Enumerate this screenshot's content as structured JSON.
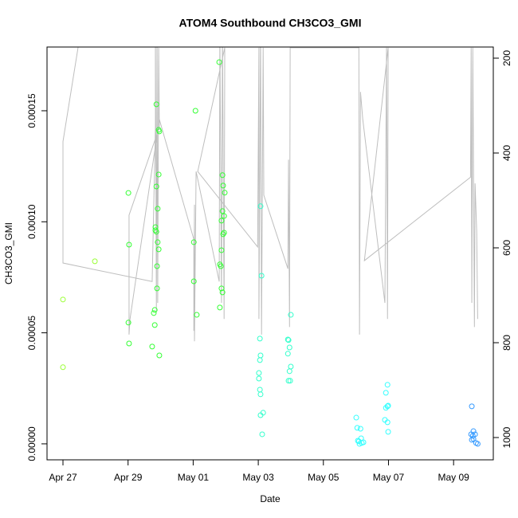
{
  "chart_data": {
    "type": "scatter",
    "title": "ATOM4 Southbound CH3CO3_GMI",
    "xlabel": "Date",
    "ylabel": "CH3CO3_GMI",
    "xlim": [
      -0.49,
      13.22
    ],
    "ylim": [
      -7.2e-06,
      0.0001787
    ],
    "y2lim": [
      1047,
      176.5
    ],
    "xticks": [
      {
        "value": 0,
        "label": "Apr 27"
      },
      {
        "value": 2,
        "label": "Apr 29"
      },
      {
        "value": 4,
        "label": "May 01"
      },
      {
        "value": 6,
        "label": "May 03"
      },
      {
        "value": 8,
        "label": "May 05"
      },
      {
        "value": 10,
        "label": "May 07"
      },
      {
        "value": 12,
        "label": "May 09"
      }
    ],
    "yticks": [
      {
        "value": 0,
        "label": "0.00000"
      },
      {
        "value": 5e-05,
        "label": "0.00005"
      },
      {
        "value": 0.0001,
        "label": "0.00010"
      },
      {
        "value": 0.00015,
        "label": "0.00015"
      }
    ],
    "y2ticks": [
      200,
      400,
      600,
      800,
      1000
    ],
    "series": [
      {
        "type": "line",
        "axis": "y2",
        "color": "#bebebe",
        "x": [
          0.54,
          0,
          0,
          2.74,
          2.84,
          2.84,
          2.87,
          2.89,
          2.91,
          2.94,
          2.96,
          2.03,
          2.03,
          2.06,
          2.96,
          4.02,
          4.02,
          4.04,
          4.04,
          4.09,
          4.8,
          4.82,
          4.87,
          4.9,
          4.95,
          4.97,
          4.14,
          5.98,
          6.02,
          6.02,
          6.07,
          6.1,
          6.15,
          6.17,
          6.91,
          6.93,
          6.96,
          6.98,
          9.09,
          9.11,
          9.14,
          9.21,
          9.89,
          9.94,
          9.97,
          9.99,
          9.26,
          12.52,
          12.54,
          12.56,
          12.59,
          12.64,
          12.66,
          12.71,
          12.74
        ],
        "values": [
          145,
          376,
          632,
          671,
          346,
          145,
          733,
          145,
          716,
          178,
          346,
          531,
          783,
          750,
          329,
          582,
          775,
          509,
          797,
          439,
          671,
          145,
          716,
          145,
          750,
          178,
          439,
          598,
          178,
          750,
          145,
          783,
          178,
          489,
          644,
          414,
          767,
          178,
          178,
          783,
          271,
          329,
          716,
          178,
          750,
          178,
          627,
          451,
          178,
          716,
          178,
          767,
          464,
          565,
          750
        ]
      },
      {
        "color": "#99ff33",
        "x": [
          0,
          0,
          0.98
        ],
        "values": [
          6.5e-05,
          3.45e-05,
          8.22e-05
        ]
      },
      {
        "color": "#33ff33",
        "x": [
          2.01,
          2.03,
          2.01,
          2.03,
          2.74,
          2.87,
          2.94,
          2.96,
          2.94,
          2.87,
          2.91,
          2.84,
          2.84,
          2.87,
          2.91,
          2.94,
          2.89,
          2.89,
          2.82,
          2.79,
          2.82,
          2.96,
          4.07,
          4.02,
          4.02,
          4.11,
          4.8,
          4.9,
          4.92,
          4.97,
          4.9,
          4.95,
          4.87,
          4.92,
          4.95,
          4.87,
          4.82,
          4.85,
          4.87,
          4.9,
          4.82
        ],
        "values": [
          0.000113,
          8.97e-05,
          5.46e-05,
          4.52e-05,
          4.38e-05,
          0.0001529,
          0.0001414,
          0.0001407,
          0.0001213,
          0.0001159,
          0.0001059,
          9.76e-05,
          9.62e-05,
          9.55e-05,
          9.08e-05,
          8.76e-05,
          8e-05,
          7e-05,
          6.03e-05,
          5.89e-05,
          5.35e-05,
          3.98e-05,
          0.00015,
          9.08e-05,
          7.32e-05,
          5.81e-05,
          0.0001719,
          0.000121,
          0.0001163,
          0.0001131,
          0.0001048,
          0.0001026,
          0.0001005,
          9.44e-05,
          9.51e-05,
          8.72e-05,
          8.08e-05,
          8e-05,
          7e-05,
          6.82e-05,
          6.14e-05
        ]
      },
      {
        "color": "#33ffcc",
        "x": [
          6.07,
          6.1,
          6.05,
          6.07,
          6.05,
          6.02,
          6.02,
          6.05,
          6.07,
          6.15,
          6.07,
          6.12,
          7.0,
          6.91,
          6.93,
          6.96,
          6.91,
          7.0,
          6.96,
          6.93,
          6.98
        ],
        "values": [
          0.000107,
          7.57e-05,
          4.74e-05,
          3.98e-05,
          3.77e-05,
          3.19e-05,
          2.94e-05,
          2.44e-05,
          2.23e-05,
          1.4e-05,
          1.29e-05,
          4.3e-06,
          5.81e-05,
          4.7e-05,
          4.67e-05,
          4.34e-05,
          4.06e-05,
          3.48e-05,
          3.27e-05,
          2.84e-05,
          2.84e-05
        ]
      },
      {
        "color": "#33ffff",
        "x": [
          9.01,
          9.04,
          9.14,
          9.16,
          9.09,
          9.18,
          9.23,
          9.06,
          9.11,
          9.97,
          9.92,
          9.99,
          9.92,
          9.97,
          9.89,
          9.97,
          9.99
        ],
        "values": [
          1.18e-05,
          7.2e-06,
          6.8e-06,
          2.5e-06,
          1.1e-06,
          4e-07,
          7e-07,
          1.4e-06,
          0,
          2.66e-05,
          2.3e-05,
          1.72e-05,
          1.62e-05,
          1.69e-05,
          1.08e-05,
          9.7e-06,
          5.4e-06
        ]
      },
      {
        "color": "#3399ff",
        "x": [
          12.56,
          12.54,
          12.61,
          12.66,
          12.56,
          12.61,
          12.69,
          12.74,
          12.59
        ],
        "values": [
          1.69e-05,
          4.3e-06,
          5.7e-06,
          4.3e-06,
          1.8e-06,
          2.2e-06,
          4e-07,
          0,
          3.6e-06
        ]
      }
    ]
  }
}
